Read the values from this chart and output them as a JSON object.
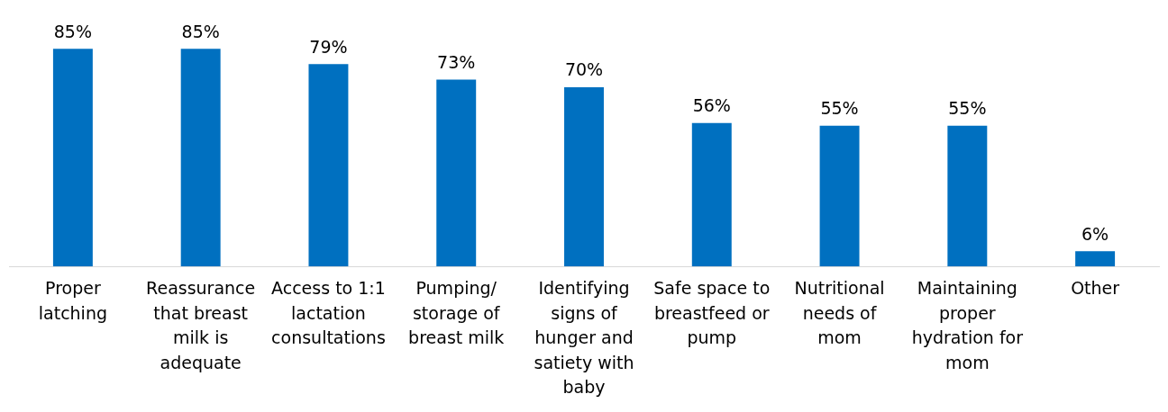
{
  "chart_data": {
    "type": "bar",
    "categories": [
      "Proper latching",
      "Reassurance that breast milk is adequate",
      "Access to 1:1 lactation consultations",
      "Pumping/ storage of breast milk",
      "Identifying signs of hunger and satiety with baby",
      "Safe space to breastfeed or pump",
      "Nutritional needs of mom",
      "Maintaining proper hydration for mom",
      "Other"
    ],
    "values": [
      85,
      85,
      79,
      73,
      70,
      56,
      55,
      55,
      6
    ],
    "value_labels": [
      "85%",
      "85%",
      "79%",
      "73%",
      "70%",
      "56%",
      "55%",
      "55%",
      "6%"
    ],
    "color": "#0070c0",
    "grid": false,
    "legend": false
  }
}
